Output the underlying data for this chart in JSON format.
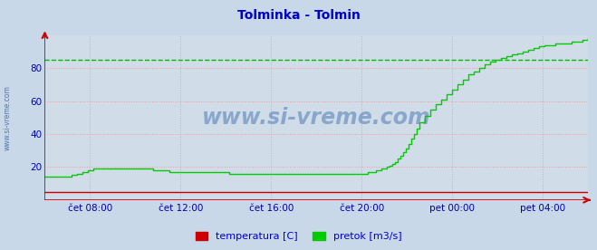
{
  "title": "Tolminka - Tolmin",
  "title_color": "#0000cc",
  "title_fontsize": 10,
  "bg_color": "#c8d8e8",
  "plot_bg_color": "#d0dce8",
  "grid_color": "#ff9999",
  "grid_style": ":",
  "x_tick_labels": [
    "čet 08:00",
    "čet 12:00",
    "čet 16:00",
    "čet 20:00",
    "pet 00:00",
    "pet 04:00"
  ],
  "x_tick_positions": [
    0.0833,
    0.25,
    0.4167,
    0.5833,
    0.75,
    0.9167
  ],
  "ylim": [
    0,
    100
  ],
  "yticks": [
    20,
    40,
    60,
    80
  ],
  "tick_color": "#0000aa",
  "watermark": "www.si-vreme.com",
  "watermark_color": "#3366aa",
  "watermark_alpha": 0.45,
  "side_label": "www.si-vreme.com",
  "side_label_color": "#3366aa",
  "legend_items": [
    "temperatura [C]",
    "pretok [m3/s]"
  ],
  "legend_colors": [
    "#cc0000",
    "#00cc00"
  ],
  "temp_color": "#cc0000",
  "flow_color": "#00cc00",
  "dashed_line_value": 85,
  "dashed_line_color": "#00bb00",
  "axis_color": "#cc0000",
  "flow_data_x": [
    0.0,
    0.01,
    0.02,
    0.03,
    0.035,
    0.042,
    0.05,
    0.06,
    0.07,
    0.08,
    0.09,
    0.1,
    0.11,
    0.12,
    0.13,
    0.14,
    0.15,
    0.16,
    0.17,
    0.18,
    0.19,
    0.2,
    0.21,
    0.22,
    0.23,
    0.24,
    0.25,
    0.26,
    0.27,
    0.28,
    0.29,
    0.3,
    0.31,
    0.32,
    0.33,
    0.34,
    0.35,
    0.36,
    0.37,
    0.38,
    0.39,
    0.4,
    0.41,
    0.42,
    0.43,
    0.44,
    0.45,
    0.46,
    0.47,
    0.48,
    0.49,
    0.5,
    0.51,
    0.52,
    0.53,
    0.54,
    0.55,
    0.56,
    0.57,
    0.575,
    0.58,
    0.585,
    0.59,
    0.595,
    0.6,
    0.605,
    0.61,
    0.615,
    0.62,
    0.625,
    0.63,
    0.635,
    0.64,
    0.645,
    0.65,
    0.655,
    0.66,
    0.665,
    0.67,
    0.675,
    0.68,
    0.685,
    0.69,
    0.7,
    0.71,
    0.72,
    0.73,
    0.74,
    0.75,
    0.76,
    0.77,
    0.78,
    0.79,
    0.8,
    0.81,
    0.82,
    0.83,
    0.84,
    0.85,
    0.86,
    0.87,
    0.88,
    0.89,
    0.9,
    0.91,
    0.92,
    0.93,
    0.94,
    0.95,
    0.96,
    0.97,
    0.98,
    0.99,
    1.0
  ],
  "flow_data_y": [
    14,
    14,
    14,
    14,
    14,
    14,
    15,
    16,
    17,
    18,
    19,
    19,
    19,
    19,
    19,
    19,
    19,
    19,
    19,
    19,
    19,
    18,
    18,
    18,
    17,
    17,
    17,
    17,
    17,
    17,
    17,
    17,
    17,
    17,
    17,
    16,
    16,
    16,
    16,
    16,
    16,
    16,
    16,
    16,
    16,
    16,
    16,
    16,
    16,
    16,
    16,
    16,
    16,
    16,
    16,
    16,
    16,
    16,
    16,
    16,
    16,
    16,
    16,
    17,
    17,
    17,
    18,
    18,
    19,
    19,
    20,
    21,
    22,
    23,
    25,
    27,
    29,
    31,
    34,
    37,
    40,
    43,
    47,
    51,
    55,
    58,
    61,
    64,
    67,
    70,
    73,
    76,
    78,
    80,
    82,
    84,
    85,
    86,
    87,
    88,
    89,
    90,
    91,
    92,
    93,
    94,
    94,
    95,
    95,
    95,
    96,
    96,
    97,
    98
  ],
  "temp_data_x": [
    0,
    0.58,
    0.59,
    1.0
  ],
  "temp_data_y": [
    5,
    5,
    5,
    5
  ]
}
